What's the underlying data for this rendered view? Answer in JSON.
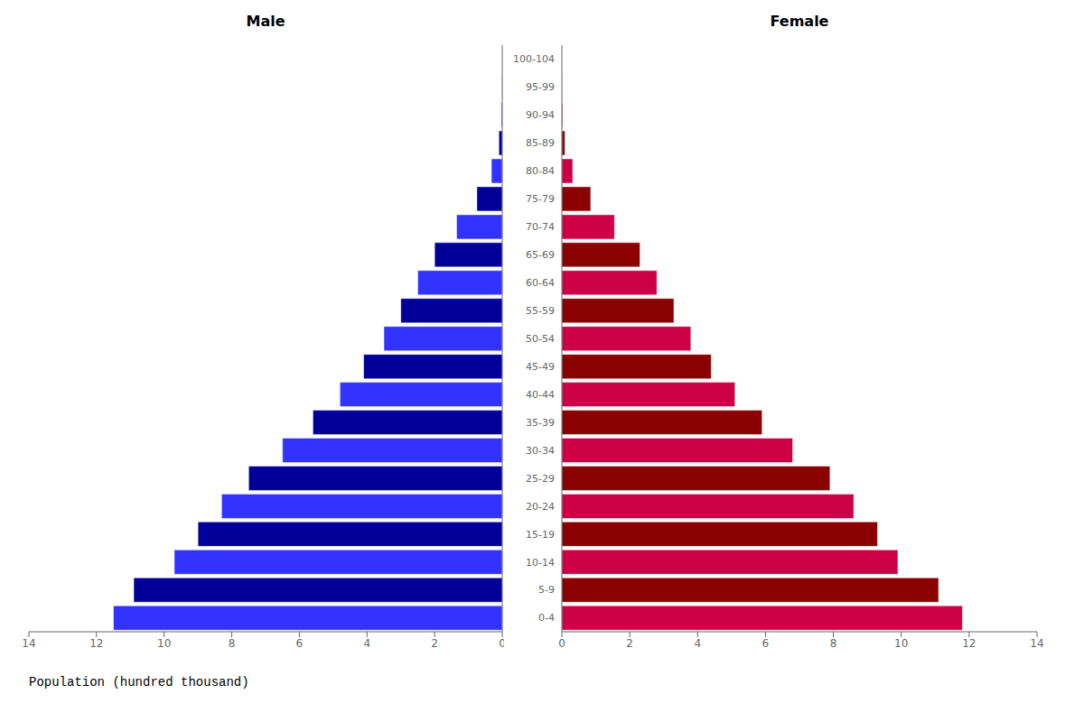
{
  "chart_data": [
    {
      "type": "bar",
      "title": "Male",
      "orientation": "horizontal",
      "xlabel": "Population (hundred thousand)",
      "tick_labels": "x",
      "categories": [
        "0-4",
        "5-9",
        "10-14",
        "15-19",
        "20-24",
        "25-29",
        "30-34",
        "35-39",
        "40-44",
        "45-49",
        "50-54",
        "55-59",
        "60-64",
        "65-69",
        "70-74",
        "75-79",
        "80-84",
        "85-89",
        "90-94",
        "95-99",
        "100-104"
      ],
      "values": [
        11.5,
        10.9,
        9.7,
        9.0,
        8.3,
        7.5,
        6.5,
        5.6,
        4.8,
        4.1,
        3.5,
        3.0,
        2.5,
        2.0,
        1.35,
        0.75,
        0.32,
        0.1,
        0.03,
        0.008,
        0.002
      ],
      "colors": [
        "#3333FF",
        "#000099",
        "#3333FF",
        "#000099",
        "#3333FF",
        "#000099",
        "#3333FF",
        "#000099",
        "#3333FF",
        "#000099",
        "#3333FF",
        "#000099",
        "#3333FF",
        "#000099",
        "#3333FF",
        "#000099",
        "#3333FF",
        "#000099",
        "#3333FF",
        "#000099",
        "#3333FF"
      ],
      "xlim": [
        14,
        0
      ],
      "xticks": [
        0,
        2,
        4,
        6,
        8,
        10,
        12,
        14
      ]
    },
    {
      "type": "bar",
      "title": "Female",
      "orientation": "horizontal",
      "categories": [
        "0-4",
        "5-9",
        "10-14",
        "15-19",
        "20-24",
        "25-29",
        "30-34",
        "35-39",
        "40-44",
        "45-49",
        "50-54",
        "55-59",
        "60-64",
        "65-69",
        "70-74",
        "75-79",
        "80-84",
        "85-89",
        "90-94",
        "95-99",
        "100-104"
      ],
      "values": [
        11.8,
        11.1,
        9.9,
        9.3,
        8.6,
        7.9,
        6.8,
        5.9,
        5.1,
        4.4,
        3.8,
        3.3,
        2.8,
        2.3,
        1.55,
        0.85,
        0.32,
        0.09,
        0.025,
        0.006,
        0.001
      ],
      "colors": [
        "#CC0044",
        "#8B0000",
        "#CC0044",
        "#8B0000",
        "#CC0044",
        "#8B0000",
        "#CC0044",
        "#8B0000",
        "#CC0044",
        "#8B0000",
        "#CC0044",
        "#8B0000",
        "#CC0044",
        "#8B0000",
        "#CC0044",
        "#8B0000",
        "#CC0044",
        "#8B0000",
        "#CC0044",
        "#8B0000",
        "#CC0044"
      ],
      "xlim": [
        0,
        14
      ],
      "xticks": [
        0,
        2,
        4,
        6,
        8,
        10,
        12,
        14
      ]
    }
  ]
}
